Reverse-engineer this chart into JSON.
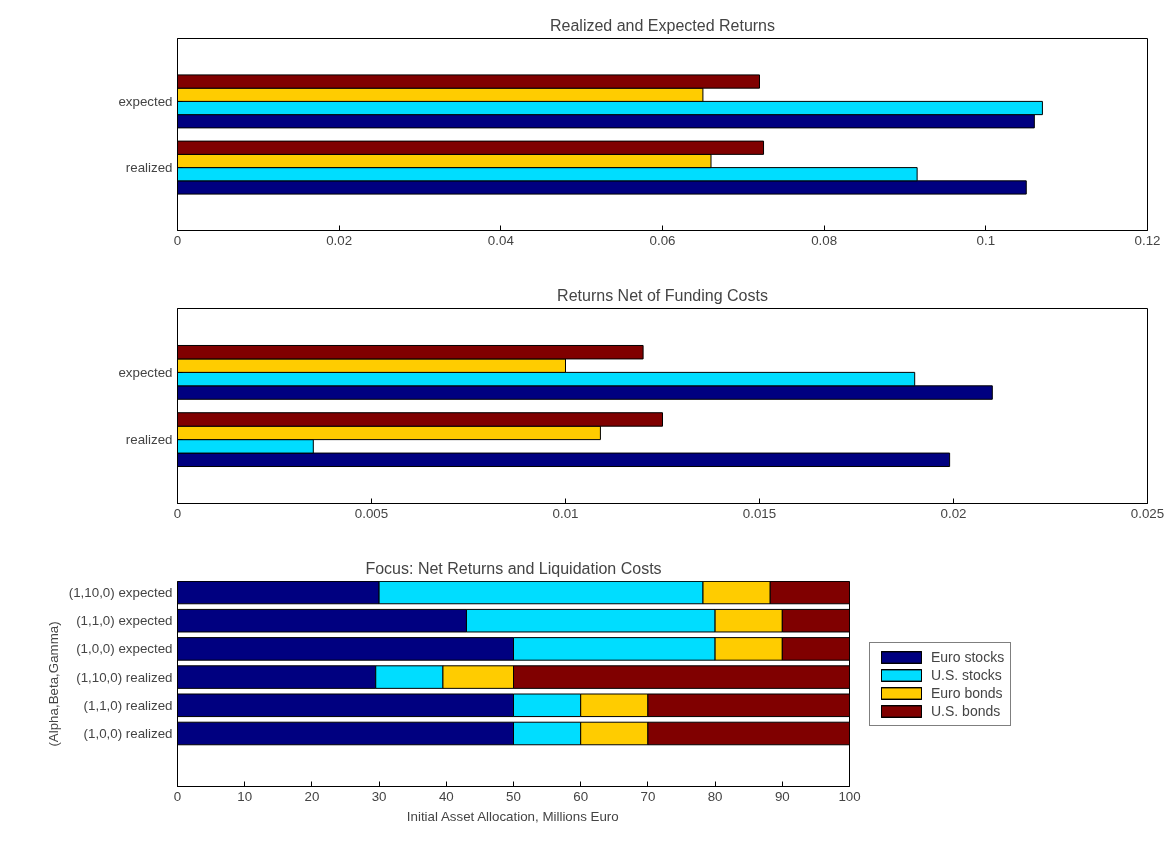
{
  "chart_data": [
    {
      "type": "bar",
      "orientation": "horizontal",
      "title": "Realized and Expected Returns",
      "categories": [
        "expected",
        "realized"
      ],
      "xlim": [
        0,
        0.12
      ],
      "xticks": [
        0,
        0.02,
        0.04,
        0.06,
        0.08,
        {
          "value": 0.1,
          "label": "0.1"
        },
        0.12
      ],
      "series": [
        {
          "color": "#000080",
          "values": [
            0.106,
            0.105
          ]
        },
        {
          "color": "#00ddff",
          "values": [
            0.107,
            0.0915
          ]
        },
        {
          "color": "#ffcc00",
          "values": [
            0.065,
            0.066
          ]
        },
        {
          "color": "#800000",
          "values": [
            0.072,
            0.0725
          ]
        }
      ]
    },
    {
      "type": "bar",
      "orientation": "horizontal",
      "title": "Returns Net of Funding Costs",
      "categories": [
        "expected",
        "realized"
      ],
      "xlim": [
        0,
        0.025
      ],
      "xticks": [
        0,
        0.005,
        0.01,
        0.015,
        0.02,
        0.025
      ],
      "series": [
        {
          "color": "#000080",
          "values": [
            0.021,
            0.0199
          ]
        },
        {
          "color": "#00ddff",
          "values": [
            0.019,
            0.0035
          ]
        },
        {
          "color": "#ffcc00",
          "values": [
            0.01,
            0.0109
          ]
        },
        {
          "color": "#800000",
          "values": [
            0.012,
            0.0125
          ]
        }
      ]
    },
    {
      "type": "bar",
      "orientation": "horizontal",
      "stacked": true,
      "title": "Focus: Net Returns and Liquidation Costs",
      "xlabel": "Initial Asset Allocation, Millions Euro",
      "ylabel": "(Alpha,Beta,Gamma)",
      "legend": "right",
      "categories": [
        "(1,10,0) expected",
        "(1,1,0) expected",
        "(1,0,0) expected",
        "(1,10,0) realized",
        "(1,1,0) realized",
        "(1,0,0) realized"
      ],
      "xlim": [
        0,
        100
      ],
      "xticks": [
        0,
        10,
        20,
        30,
        40,
        50,
        60,
        70,
        80,
        90,
        100
      ],
      "series": [
        {
          "name": "Euro stocks",
          "color": "#000080",
          "values": [
            30,
            43,
            50,
            29.5,
            50,
            50
          ]
        },
        {
          "name": "U.S. stocks",
          "color": "#00ddff",
          "values": [
            48.2,
            37,
            30,
            10,
            10,
            10
          ]
        },
        {
          "name": "Euro bonds",
          "color": "#ffcc00",
          "values": [
            10,
            10,
            10,
            10.5,
            10,
            10
          ]
        },
        {
          "name": "U.S. bonds",
          "color": "#800000",
          "values": [
            11.8,
            10,
            10,
            50,
            30,
            30
          ]
        }
      ]
    }
  ]
}
